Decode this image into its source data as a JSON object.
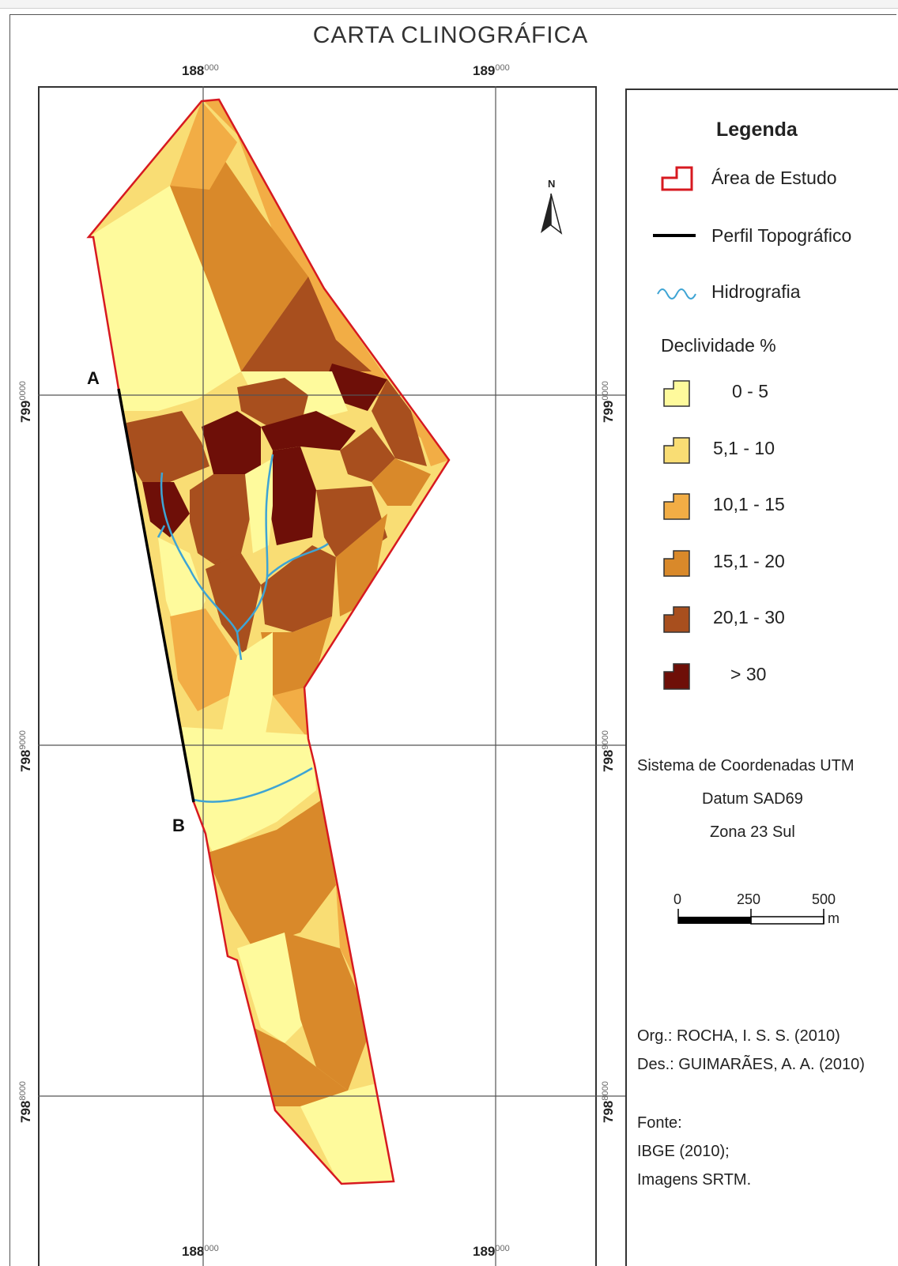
{
  "title": "CARTA CLINOGRÁFICA",
  "grid": {
    "top_x": [
      {
        "base": "188",
        "exp": "000"
      },
      {
        "base": "189",
        "exp": "000"
      }
    ],
    "bottom_x": [
      {
        "base": "188",
        "exp": "000"
      },
      {
        "base": "189",
        "exp": "000"
      }
    ],
    "left_y": [
      {
        "base": "799",
        "exp": "0000"
      },
      {
        "base": "798",
        "exp": "9000"
      },
      {
        "base": "798",
        "exp": "8000"
      }
    ],
    "right_y": [
      {
        "base": "799",
        "exp": "0000"
      },
      {
        "base": "798",
        "exp": "9000"
      },
      {
        "base": "798",
        "exp": "8000"
      }
    ]
  },
  "profile_points": {
    "start": "A",
    "end": "B"
  },
  "north_arrow": {
    "label": "N",
    "icon": "north-arrow-icon"
  },
  "legend": {
    "title": "Legenda",
    "items": [
      {
        "label": "Área de Estudo",
        "icon": "study-area-icon"
      },
      {
        "label": "Perfil Topográfico",
        "icon": "profile-line-icon"
      },
      {
        "label": "Hidrografia",
        "icon": "hydrography-icon"
      }
    ],
    "classes_title": "Declividade %",
    "classes": [
      {
        "label": "0 - 5",
        "color": "#fefa9c"
      },
      {
        "label": "5,1 - 10",
        "color": "#f9dd74"
      },
      {
        "label": "10,1 - 15",
        "color": "#f2ad45"
      },
      {
        "label": "15,1 - 20",
        "color": "#d9892a"
      },
      {
        "label": "20,1 - 30",
        "color": "#a84f1e"
      },
      {
        "label": "> 30",
        "color": "#6e0f08"
      }
    ]
  },
  "projection": {
    "system": "Sistema de Coordenadas UTM",
    "datum": "Datum SAD69",
    "zone": "Zona 23 Sul"
  },
  "scale_bar": {
    "ticks": [
      "0",
      "250",
      "500"
    ],
    "unit": "m"
  },
  "credits": {
    "org": "Org.: ROCHA, I. S. S. (2010)",
    "des": "Des.: GUIMARÃES, A. A. (2010)",
    "source_label": "Fonte:",
    "sources": [
      "IBGE (2010);",
      "Imagens SRTM."
    ]
  },
  "colors": {
    "boundary": "#d71920",
    "profile": "#000000",
    "river": "#3ea4d4",
    "grid": "#555555"
  }
}
